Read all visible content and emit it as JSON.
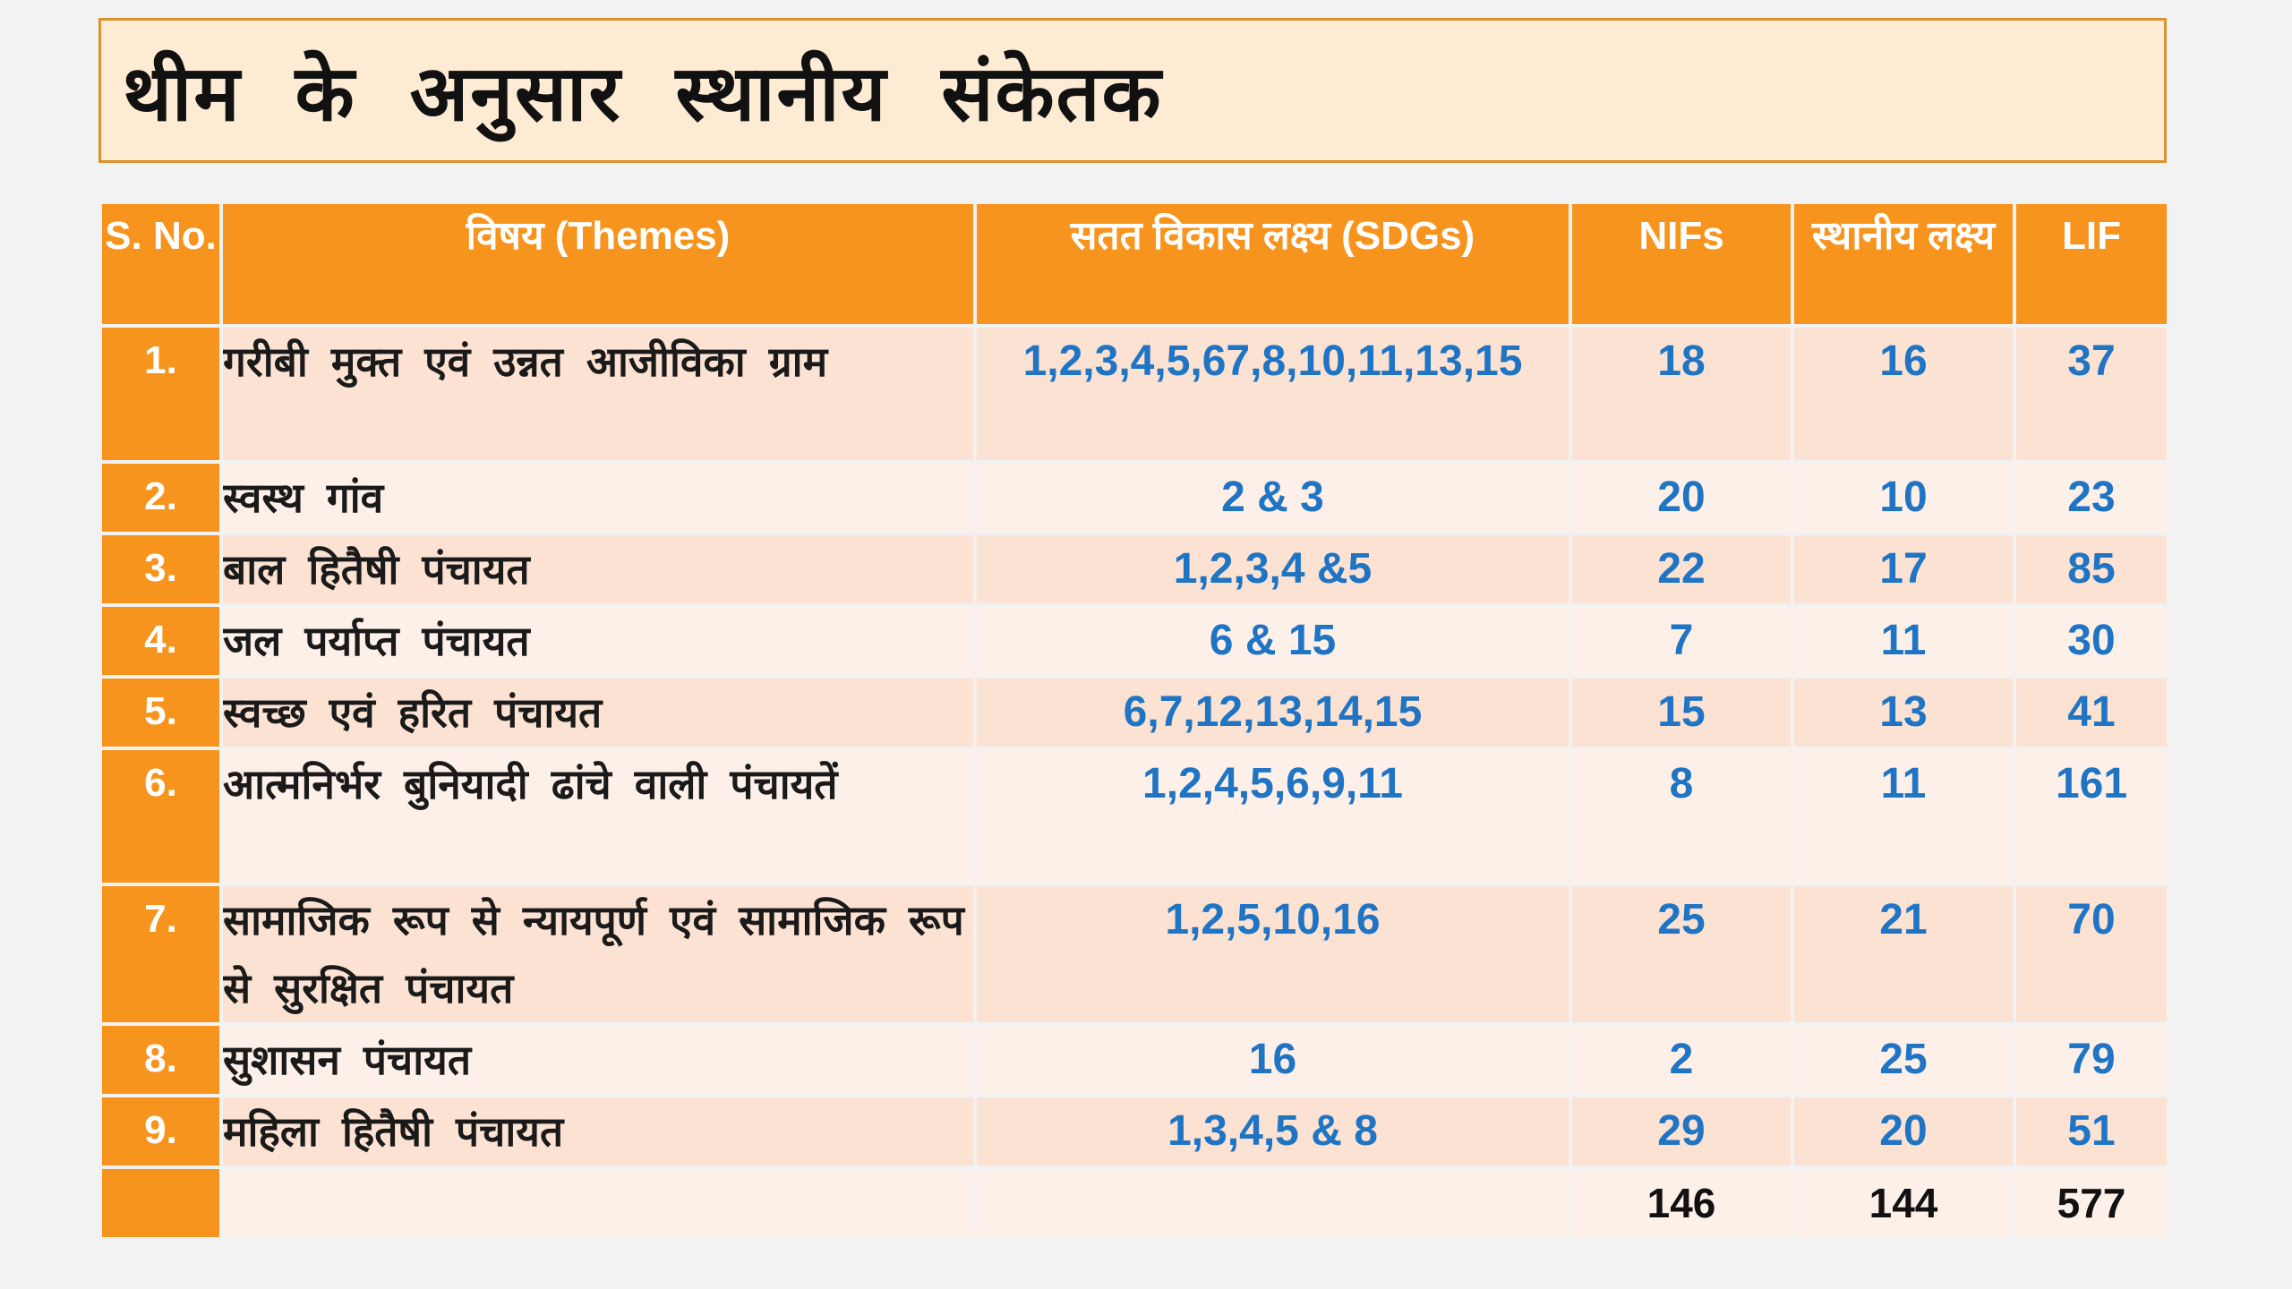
{
  "title": "थीम के अनुसार स्थानीय संकेतक",
  "table": {
    "headers": {
      "sno": "S. No.",
      "theme": "विषय (Themes)",
      "sdgs": "सतत विकास लक्ष्य (SDGs)",
      "nifs": "NIFs",
      "local_targets": "स्थानीय लक्ष्य",
      "lif": "LIF"
    },
    "rows": [
      {
        "sno": "1.",
        "theme": "गरीबी मुक्त एवं उन्नत आजीविका ग्राम",
        "sdgs": "1,2,3,4,5,67,8,10,11,13,15",
        "nifs": "18",
        "local_targets": "16",
        "lif": "37"
      },
      {
        "sno": "2.",
        "theme": "स्वस्थ गांव",
        "sdgs": "2 & 3",
        "nifs": "20",
        "local_targets": "10",
        "lif": "23"
      },
      {
        "sno": "3.",
        "theme": "बाल हितैषी पंचायत",
        "sdgs": "1,2,3,4 &5",
        "nifs": "22",
        "local_targets": "17",
        "lif": "85"
      },
      {
        "sno": "4.",
        "theme": "जल पर्याप्त पंचायत",
        "sdgs": "6 & 15",
        "nifs": "7",
        "local_targets": "11",
        "lif": "30"
      },
      {
        "sno": "5.",
        "theme": "स्वच्छ एवं हरित पंचायत",
        "sdgs": "6,7,12,13,14,15",
        "nifs": "15",
        "local_targets": "13",
        "lif": "41"
      },
      {
        "sno": "6.",
        "theme": "आत्मनिर्भर बुनियादी ढांचे वाली पंचायतें",
        "sdgs": "1,2,4,5,6,9,11",
        "nifs": "8",
        "local_targets": "11",
        "lif": "161"
      },
      {
        "sno": "7.",
        "theme": "सामाजिक रूप से न्यायपूर्ण एवं सामाजिक रूप से सुरक्षित पंचायत",
        "sdgs": "1,2,5,10,16",
        "nifs": "25",
        "local_targets": "21",
        "lif": "70"
      },
      {
        "sno": "8.",
        "theme": "सुशासन पंचायत",
        "sdgs": "16",
        "nifs": "2",
        "local_targets": "25",
        "lif": "79"
      },
      {
        "sno": "9.",
        "theme": "महिला हितैषी पंचायत",
        "sdgs": "1,3,4,5 & 8",
        "nifs": "29",
        "local_targets": "20",
        "lif": "51"
      }
    ],
    "totals": {
      "nifs": "146",
      "local_targets": "144",
      "lif": "577"
    }
  }
}
